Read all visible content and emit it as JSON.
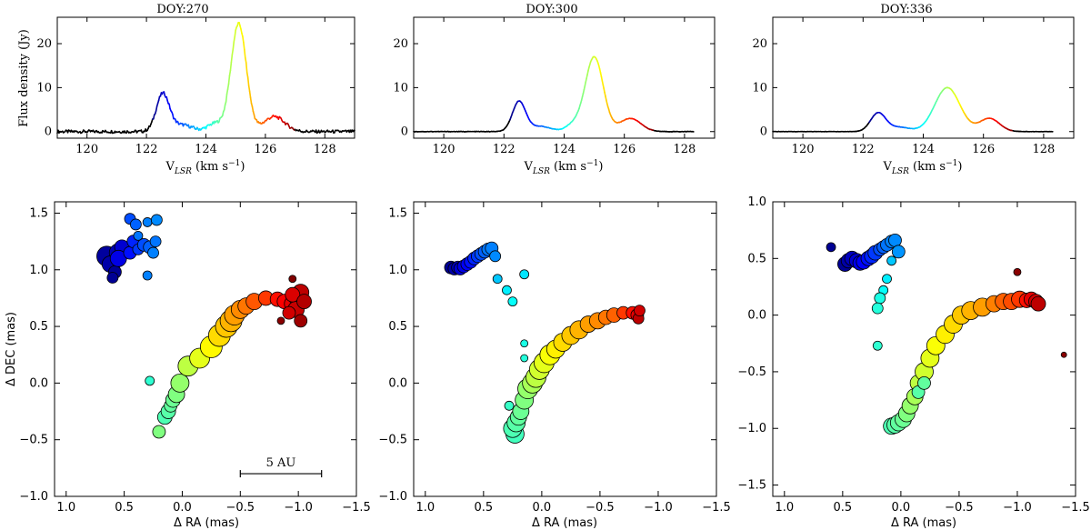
{
  "chart_data": [
    {
      "type": "line",
      "panel": "spectrum-1",
      "title": "DOY:270",
      "ylabel": "Flux density (Jy)",
      "xlabel": {
        "main": "V",
        "sub": "LSR",
        "unit": " (km s",
        "exp": "−1",
        "close": ")"
      },
      "xlim": [
        119,
        129
      ],
      "ylim": [
        -1.5,
        26
      ],
      "xticks": [
        120,
        122,
        124,
        126,
        128
      ],
      "yticks": [
        0,
        10,
        20
      ],
      "v_start": 119,
      "v_end": 129,
      "color_range": [
        122.2,
        127.0
      ],
      "peaks": [
        {
          "v": 122.55,
          "a": 8.5,
          "w": 0.22
        },
        {
          "v": 123.2,
          "a": 1.5,
          "w": 0.35
        },
        {
          "v": 124.3,
          "a": 1.8,
          "w": 0.25
        },
        {
          "v": 125.1,
          "a": 24.5,
          "w": 0.26
        },
        {
          "v": 126.3,
          "a": 3.4,
          "w": 0.35
        }
      ],
      "noise": 0.35
    },
    {
      "type": "line",
      "panel": "spectrum-2",
      "title": "DOY:300",
      "xlabel": {
        "main": "V",
        "sub": "LSR",
        "unit": " (km s",
        "exp": "−1",
        "close": ")"
      },
      "xlim": [
        119,
        129
      ],
      "ylim": [
        -1.5,
        26
      ],
      "xticks": [
        120,
        122,
        124,
        126,
        128
      ],
      "yticks": [
        0,
        10,
        20
      ],
      "v_start": 119,
      "v_end": 128.3,
      "color_range": [
        122.2,
        127.0
      ],
      "peaks": [
        {
          "v": 122.5,
          "a": 6.8,
          "w": 0.22
        },
        {
          "v": 123.2,
          "a": 1.2,
          "w": 0.35
        },
        {
          "v": 124.3,
          "a": 1.5,
          "w": 0.25
        },
        {
          "v": 125.0,
          "a": 17.0,
          "w": 0.3
        },
        {
          "v": 126.2,
          "a": 3.0,
          "w": 0.35
        }
      ],
      "noise": 0.05
    },
    {
      "type": "line",
      "panel": "spectrum-3",
      "title": "DOY:336",
      "xlabel": {
        "main": "V",
        "sub": "LSR",
        "unit": " (km s",
        "exp": "−1",
        "close": ")"
      },
      "xlim": [
        119,
        129
      ],
      "ylim": [
        -1.5,
        26
      ],
      "xticks": [
        120,
        122,
        124,
        126,
        128
      ],
      "yticks": [
        0,
        10,
        20
      ],
      "v_start": 119,
      "v_end": 128.3,
      "color_range": [
        122.2,
        127.0
      ],
      "peaks": [
        {
          "v": 122.5,
          "a": 4.2,
          "w": 0.25
        },
        {
          "v": 123.2,
          "a": 1.0,
          "w": 0.35
        },
        {
          "v": 124.8,
          "a": 10.0,
          "w": 0.42
        },
        {
          "v": 126.2,
          "a": 3.0,
          "w": 0.33
        }
      ],
      "noise": 0.03
    },
    {
      "type": "scatter",
      "panel": "map-1",
      "xlabel": "Δ RA (mas)",
      "ylabel": "Δ DEC (mas)",
      "xlim": [
        1.1,
        -1.5
      ],
      "ylim": [
        -1.0,
        1.6
      ],
      "xticks": [
        1.0,
        0.5,
        0.0,
        -0.5,
        -1.0,
        -1.5
      ],
      "yticks": [
        -1.0,
        -0.5,
        0.0,
        0.5,
        1.0,
        1.5
      ],
      "scalebar": {
        "label": "5 AU",
        "ra_from": -0.5,
        "ra_to": -1.2,
        "dec": -0.8
      },
      "points": [
        [
          0.6,
          1.1,
          0.0,
          12
        ],
        [
          0.65,
          1.12,
          0.03,
          11
        ],
        [
          0.55,
          1.15,
          0.05,
          10
        ],
        [
          0.62,
          1.05,
          0.04,
          9
        ],
        [
          0.58,
          0.98,
          0.02,
          7
        ],
        [
          0.6,
          0.93,
          0.02,
          6
        ],
        [
          0.52,
          1.2,
          0.08,
          8
        ],
        [
          0.55,
          1.1,
          0.1,
          9
        ],
        [
          0.45,
          1.15,
          0.14,
          7
        ],
        [
          0.42,
          1.25,
          0.16,
          7
        ],
        [
          0.38,
          1.18,
          0.18,
          6
        ],
        [
          0.33,
          1.22,
          0.2,
          7
        ],
        [
          0.28,
          1.2,
          0.22,
          7
        ],
        [
          0.23,
          1.25,
          0.24,
          6
        ],
        [
          0.25,
          1.15,
          0.25,
          6
        ],
        [
          0.45,
          1.45,
          0.2,
          6
        ],
        [
          0.4,
          1.4,
          0.22,
          6
        ],
        [
          0.3,
          1.42,
          0.25,
          5
        ],
        [
          0.22,
          1.44,
          0.26,
          6
        ],
        [
          0.38,
          1.3,
          0.24,
          5
        ],
        [
          0.3,
          0.95,
          0.25,
          5
        ],
        [
          0.28,
          0.02,
          0.42,
          5
        ],
        [
          0.15,
          -0.3,
          0.45,
          8
        ],
        [
          0.12,
          -0.25,
          0.46,
          8
        ],
        [
          0.1,
          -0.2,
          0.47,
          7
        ],
        [
          0.08,
          -0.15,
          0.48,
          8
        ],
        [
          0.05,
          -0.1,
          0.5,
          9
        ],
        [
          0.02,
          0.0,
          0.52,
          10
        ],
        [
          0.2,
          -0.43,
          0.5,
          7
        ],
        [
          -0.05,
          0.15,
          0.56,
          11
        ],
        [
          -0.15,
          0.22,
          0.6,
          11
        ],
        [
          -0.25,
          0.32,
          0.63,
          12
        ],
        [
          -0.32,
          0.42,
          0.66,
          12
        ],
        [
          -0.38,
          0.5,
          0.68,
          12
        ],
        [
          -0.42,
          0.55,
          0.7,
          12
        ],
        [
          -0.45,
          0.6,
          0.72,
          11
        ],
        [
          -0.5,
          0.65,
          0.74,
          10
        ],
        [
          -0.55,
          0.68,
          0.76,
          9
        ],
        [
          -0.62,
          0.72,
          0.79,
          9
        ],
        [
          -0.72,
          0.75,
          0.82,
          8
        ],
        [
          -0.82,
          0.74,
          0.86,
          8
        ],
        [
          -0.88,
          0.72,
          0.88,
          8
        ],
        [
          -0.95,
          0.7,
          0.9,
          9
        ],
        [
          -1.0,
          0.75,
          0.92,
          10
        ],
        [
          -0.98,
          0.65,
          0.93,
          9
        ],
        [
          -1.02,
          0.8,
          0.94,
          9
        ],
        [
          -0.95,
          0.78,
          0.91,
          8
        ],
        [
          -1.05,
          0.72,
          0.95,
          8
        ],
        [
          -1.02,
          0.55,
          0.97,
          7
        ],
        [
          -0.85,
          0.55,
          0.99,
          4
        ],
        [
          -0.95,
          0.92,
          1.0,
          4
        ],
        [
          -0.92,
          0.62,
          0.92,
          7
        ]
      ]
    },
    {
      "type": "scatter",
      "panel": "map-2",
      "xlabel": "Δ RA (mas)",
      "xlim": [
        1.1,
        -1.5
      ],
      "ylim": [
        -1.0,
        1.6
      ],
      "xticks": [
        1.0,
        0.5,
        0.0,
        -0.5,
        -1.0,
        -1.5
      ],
      "yticks": [
        -1.0,
        -0.5,
        0.0,
        0.5,
        1.0,
        1.5
      ],
      "points": [
        [
          0.78,
          1.02,
          0.02,
          7
        ],
        [
          0.75,
          1.01,
          0.04,
          7
        ],
        [
          0.72,
          1.02,
          0.06,
          7
        ],
        [
          0.7,
          1.01,
          0.08,
          7
        ],
        [
          0.67,
          1.03,
          0.1,
          7
        ],
        [
          0.64,
          1.05,
          0.12,
          7
        ],
        [
          0.61,
          1.07,
          0.14,
          7
        ],
        [
          0.58,
          1.1,
          0.16,
          7
        ],
        [
          0.55,
          1.12,
          0.18,
          7
        ],
        [
          0.52,
          1.14,
          0.2,
          7
        ],
        [
          0.49,
          1.16,
          0.22,
          7
        ],
        [
          0.46,
          1.18,
          0.24,
          7
        ],
        [
          0.43,
          1.19,
          0.25,
          7
        ],
        [
          0.4,
          1.12,
          0.26,
          6
        ],
        [
          0.38,
          0.92,
          0.32,
          5
        ],
        [
          0.3,
          0.82,
          0.36,
          5
        ],
        [
          0.25,
          0.72,
          0.38,
          5
        ],
        [
          0.15,
          0.96,
          0.35,
          5
        ],
        [
          0.15,
          0.35,
          0.4,
          4
        ],
        [
          0.15,
          0.22,
          0.41,
          4
        ],
        [
          0.28,
          -0.2,
          0.43,
          5
        ],
        [
          0.23,
          -0.45,
          0.44,
          10
        ],
        [
          0.25,
          -0.4,
          0.45,
          10
        ],
        [
          0.22,
          -0.35,
          0.46,
          10
        ],
        [
          0.2,
          -0.3,
          0.47,
          9
        ],
        [
          0.18,
          -0.25,
          0.48,
          9
        ],
        [
          0.15,
          -0.15,
          0.5,
          10
        ],
        [
          0.12,
          -0.05,
          0.52,
          11
        ],
        [
          0.08,
          0.0,
          0.54,
          11
        ],
        [
          0.05,
          0.05,
          0.56,
          11
        ],
        [
          0.02,
          0.12,
          0.58,
          11
        ],
        [
          -0.02,
          0.18,
          0.6,
          11
        ],
        [
          -0.07,
          0.25,
          0.62,
          11
        ],
        [
          -0.12,
          0.3,
          0.64,
          10
        ],
        [
          -0.18,
          0.36,
          0.66,
          10
        ],
        [
          -0.25,
          0.42,
          0.68,
          10
        ],
        [
          -0.32,
          0.47,
          0.7,
          10
        ],
        [
          -0.4,
          0.52,
          0.72,
          9
        ],
        [
          -0.48,
          0.55,
          0.74,
          9
        ],
        [
          -0.55,
          0.58,
          0.76,
          8
        ],
        [
          -0.62,
          0.6,
          0.78,
          8
        ],
        [
          -0.7,
          0.62,
          0.82,
          7
        ],
        [
          -0.78,
          0.62,
          0.86,
          7
        ],
        [
          -0.82,
          0.6,
          0.9,
          7
        ],
        [
          -0.83,
          0.57,
          0.94,
          6
        ],
        [
          -0.84,
          0.64,
          0.92,
          6
        ]
      ]
    },
    {
      "type": "scatter",
      "panel": "map-3",
      "xlabel": "Δ RA (mas)",
      "xlim": [
        1.1,
        -1.5
      ],
      "ylim": [
        -1.6,
        1.0
      ],
      "xticks": [
        1.0,
        0.5,
        0.0,
        -0.5,
        -1.0,
        -1.5
      ],
      "yticks": [
        -1.5,
        -1.0,
        -0.5,
        0.0,
        0.5,
        1.0
      ],
      "points": [
        [
          0.6,
          0.6,
          0.02,
          5
        ],
        [
          0.48,
          0.45,
          0.02,
          8
        ],
        [
          0.45,
          0.48,
          0.04,
          8
        ],
        [
          0.42,
          0.5,
          0.06,
          8
        ],
        [
          0.38,
          0.48,
          0.08,
          8
        ],
        [
          0.35,
          0.46,
          0.1,
          8
        ],
        [
          0.32,
          0.47,
          0.12,
          8
        ],
        [
          0.28,
          0.5,
          0.14,
          8
        ],
        [
          0.25,
          0.52,
          0.16,
          8
        ],
        [
          0.22,
          0.55,
          0.18,
          8
        ],
        [
          0.18,
          0.58,
          0.2,
          7
        ],
        [
          0.15,
          0.6,
          0.22,
          7
        ],
        [
          0.12,
          0.62,
          0.24,
          7
        ],
        [
          0.08,
          0.65,
          0.25,
          7
        ],
        [
          0.05,
          0.66,
          0.26,
          7
        ],
        [
          0.02,
          0.56,
          0.27,
          7
        ],
        [
          0.08,
          0.48,
          0.32,
          5
        ],
        [
          0.12,
          0.32,
          0.36,
          5
        ],
        [
          0.15,
          0.22,
          0.38,
          5
        ],
        [
          0.18,
          0.15,
          0.4,
          6
        ],
        [
          0.2,
          0.06,
          0.41,
          6
        ],
        [
          0.2,
          -0.27,
          0.42,
          5
        ],
        [
          0.08,
          -0.98,
          0.45,
          9
        ],
        [
          0.05,
          -0.97,
          0.46,
          9
        ],
        [
          0.02,
          -0.95,
          0.47,
          9
        ],
        [
          -0.02,
          -0.92,
          0.48,
          9
        ],
        [
          -0.05,
          -0.87,
          0.5,
          9
        ],
        [
          -0.08,
          -0.8,
          0.52,
          9
        ],
        [
          -0.12,
          -0.72,
          0.54,
          9
        ],
        [
          -0.15,
          -0.6,
          0.56,
          9
        ],
        [
          -0.2,
          -0.5,
          0.58,
          10
        ],
        [
          -0.25,
          -0.38,
          0.6,
          10
        ],
        [
          -0.3,
          -0.27,
          0.62,
          10
        ],
        [
          -0.38,
          -0.17,
          0.64,
          10
        ],
        [
          -0.45,
          -0.08,
          0.66,
          10
        ],
        [
          -0.52,
          0.0,
          0.68,
          10
        ],
        [
          -0.6,
          0.04,
          0.7,
          10
        ],
        [
          -0.7,
          0.07,
          0.72,
          10
        ],
        [
          -0.8,
          0.1,
          0.75,
          9
        ],
        [
          -0.88,
          0.12,
          0.78,
          9
        ],
        [
          -0.95,
          0.12,
          0.8,
          9
        ],
        [
          -1.02,
          0.14,
          0.82,
          9
        ],
        [
          -1.08,
          0.13,
          0.86,
          8
        ],
        [
          -1.12,
          0.14,
          0.9,
          8
        ],
        [
          -1.16,
          0.12,
          0.92,
          8
        ],
        [
          -1.18,
          0.1,
          0.94,
          8
        ],
        [
          -1.0,
          0.38,
          0.99,
          4
        ],
        [
          -1.4,
          -0.35,
          0.99,
          3
        ],
        [
          -0.15,
          -0.68,
          0.46,
          7
        ],
        [
          -0.2,
          -0.6,
          0.47,
          7
        ]
      ]
    }
  ]
}
